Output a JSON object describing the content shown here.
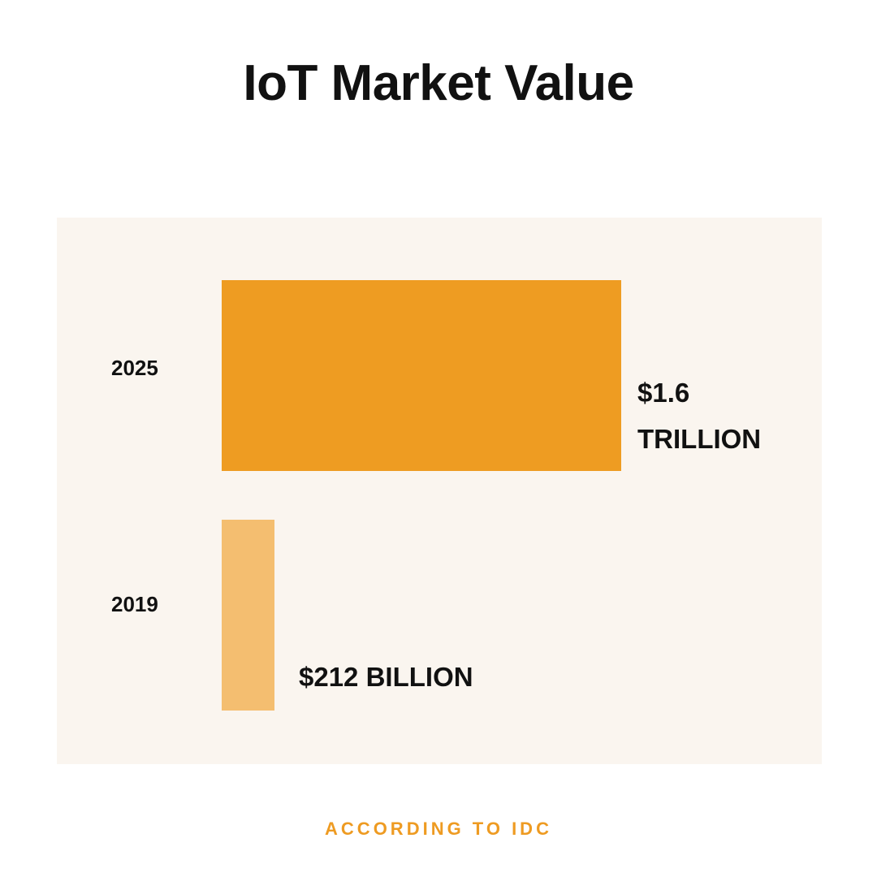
{
  "chart_data": {
    "type": "bar",
    "orientation": "horizontal",
    "title": "IoT Market Value",
    "categories": [
      "2025",
      "2019"
    ],
    "values": [
      1600,
      212
    ],
    "value_unit": "billion USD",
    "value_labels": [
      [
        "$1.6",
        "TRILLION"
      ],
      [
        "$212 BILLION"
      ]
    ],
    "colors": [
      "#ee9c22",
      "#f4be70"
    ],
    "background": "#faf5ef",
    "grid": false,
    "legend": "none",
    "source": "ACCORDING TO IDC"
  }
}
